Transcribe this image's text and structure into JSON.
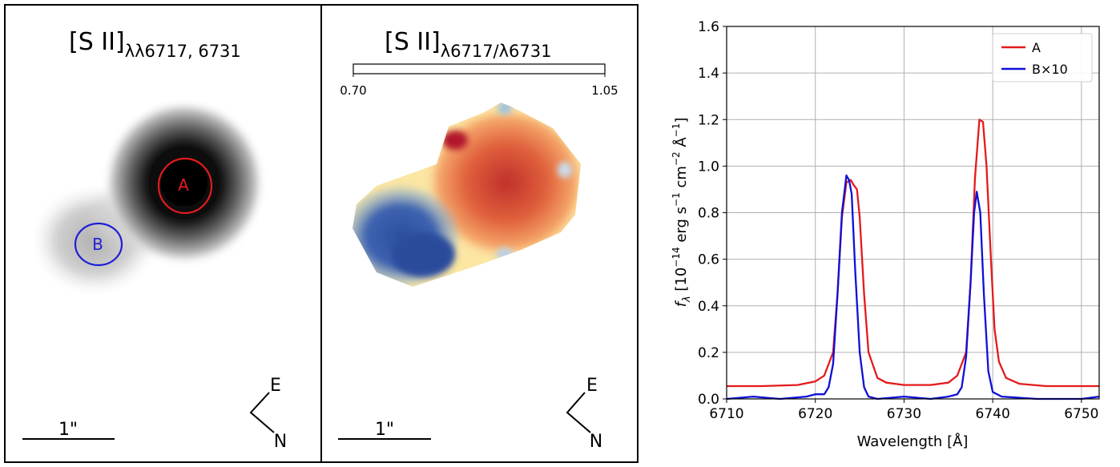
{
  "panel_flux": {
    "title_main": "[S II]",
    "title_sub": "λλ6717, 6731",
    "region_a_label": "A",
    "region_b_label": "B",
    "scale_label": "1\"",
    "compass_e": "E",
    "compass_n": "N"
  },
  "panel_ratio": {
    "title_main": "[S II]",
    "title_sub": "λ6717/λ6731",
    "colorbar_min_label": "0.70",
    "colorbar_max_label": "1.05",
    "colorbar_range": [
      0.7,
      1.05
    ],
    "scale_label": "1\"",
    "compass_e": "E",
    "compass_n": "N"
  },
  "colors": {
    "region_a": "#e41a1c",
    "region_b": "#1f1fd6",
    "line_a": "#e41a1c",
    "line_b": "#1010d8",
    "ratio_low": "#2c4fa0",
    "ratio_high": "#b2182b"
  },
  "chart_data": {
    "type": "line",
    "xlabel": "Wavelength [Å]",
    "ylabel": "f_λ [10^-14 erg s^-1 cm^-2 Å^-1]",
    "ylabel_parts": {
      "f": "f",
      "lambda": "λ",
      "open": " [10",
      "exp1": "−14",
      "erg": " erg s",
      "exp2": "−1",
      "cm": " cm",
      "exp3": "−2",
      "ang": " Å",
      "exp4": "−1",
      "close": "]"
    },
    "xlim": [
      6710,
      6752
    ],
    "ylim": [
      0.0,
      1.6
    ],
    "xticks": [
      "6710",
      "6720",
      "6730",
      "6740",
      "6750"
    ],
    "yticks": [
      "0.0",
      "0.2",
      "0.4",
      "0.6",
      "0.8",
      "1.0",
      "1.2",
      "1.4",
      "1.6"
    ],
    "grid": true,
    "legend_position": "top-right",
    "series": [
      {
        "name": "A",
        "x": [
          6710,
          6714,
          6718,
          6720,
          6721,
          6722,
          6722.5,
          6723,
          6723.5,
          6724,
          6724.3,
          6724.7,
          6725,
          6725.5,
          6726,
          6727,
          6728,
          6730,
          6733,
          6735,
          6736,
          6737,
          6737.5,
          6738,
          6738.5,
          6738.9,
          6739.3,
          6739.8,
          6740.2,
          6740.7,
          6741.5,
          6743,
          6746,
          6750,
          6752
        ],
        "y": [
          0.055,
          0.055,
          0.06,
          0.075,
          0.1,
          0.2,
          0.45,
          0.78,
          0.93,
          0.94,
          0.92,
          0.9,
          0.78,
          0.45,
          0.2,
          0.09,
          0.07,
          0.06,
          0.06,
          0.07,
          0.1,
          0.2,
          0.5,
          0.95,
          1.2,
          1.19,
          1.0,
          0.6,
          0.3,
          0.16,
          0.09,
          0.065,
          0.055,
          0.055,
          0.055
        ]
      },
      {
        "name": "B×10",
        "x": [
          6710,
          6713,
          6716,
          6719,
          6720,
          6721,
          6721.5,
          6722,
          6722.5,
          6723,
          6723.5,
          6723.8,
          6724.1,
          6724.5,
          6725,
          6725.5,
          6726,
          6727,
          6730,
          6733,
          6735,
          6736,
          6736.5,
          6737,
          6737.5,
          6737.9,
          6738.2,
          6738.6,
          6739,
          6739.5,
          6740,
          6741,
          6745,
          6750,
          6752
        ],
        "y": [
          0.0,
          0.01,
          0.0,
          0.01,
          0.02,
          0.02,
          0.05,
          0.15,
          0.45,
          0.8,
          0.96,
          0.94,
          0.88,
          0.55,
          0.2,
          0.05,
          0.01,
          0.0,
          0.01,
          0.0,
          0.01,
          0.02,
          0.05,
          0.18,
          0.5,
          0.8,
          0.89,
          0.8,
          0.45,
          0.12,
          0.03,
          0.01,
          0.0,
          0.0,
          0.01
        ]
      }
    ]
  }
}
